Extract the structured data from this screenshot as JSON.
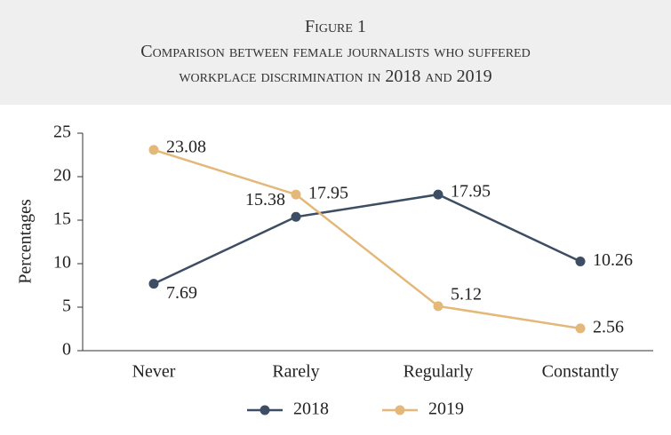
{
  "chart_data": {
    "type": "line",
    "figure_label": "Figure 1",
    "title": [
      "Comparison between female journalists who suffered",
      "workplace discrimination in 2018 and 2019"
    ],
    "ylabel": "Percentages",
    "categories": [
      "Never",
      "Rarely",
      "Regularly",
      "Constantly"
    ],
    "series": [
      {
        "name": "2018",
        "color": "#3d4d63",
        "values": [
          7.69,
          15.38,
          17.95,
          10.26
        ]
      },
      {
        "name": "2019",
        "color": "#e3b878",
        "values": [
          23.08,
          17.95,
          5.12,
          2.56
        ]
      }
    ],
    "ylim": [
      0,
      25
    ],
    "yticks": [
      0,
      5,
      10,
      15,
      20,
      25
    ],
    "legend": "bottom"
  }
}
